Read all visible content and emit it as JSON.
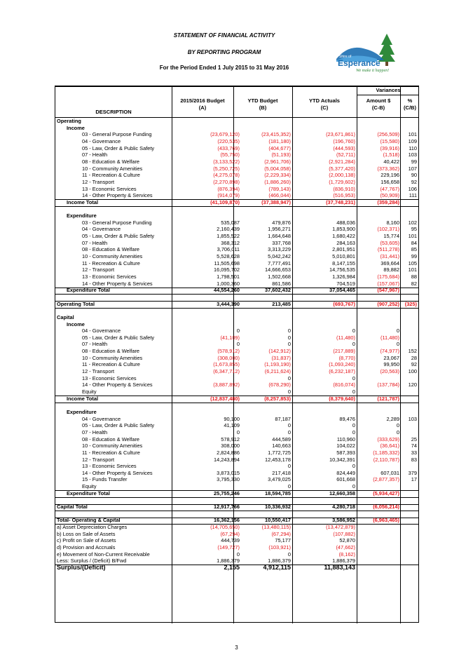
{
  "header": {
    "title": "STATEMENT OF FINANCIAL ACTIVITY",
    "subtitle": "BY REPORTING PROGRAM",
    "period": "For the Period Ended 1 July 2015 to 31 May 2016"
  },
  "logo": {
    "line1": "Shire of",
    "line2": "Esperance",
    "tagline": "We make it happen!"
  },
  "columns": {
    "variances": "Variances",
    "description": "DESCRIPTION",
    "budget": "2015/2016 Budget",
    "budget_sub": "(A)",
    "ytd_budget": "YTD Budget",
    "ytd_budget_sub": "(B)",
    "ytd_actuals": "YTD Actuals",
    "ytd_actuals_sub": "(C)",
    "amount": "Amount $",
    "amount_sub": "(C-B)",
    "pct": "%",
    "pct_sub": "(C/B)"
  },
  "rows": [
    {
      "label": "Operating",
      "b": "",
      "y": "",
      "a": "",
      "v": "",
      "p": "",
      "bold": true,
      "indent": 0
    },
    {
      "label": "Income",
      "b": "",
      "y": "",
      "a": "",
      "v": "",
      "p": "",
      "bold": true,
      "indent": 1
    },
    {
      "label": "03 - General Purpose Funding",
      "b": "(23,679,120)",
      "y": "(23,415,352)",
      "a": "(23,671,861)",
      "v": "(256,509)",
      "p": "101",
      "indent": 2
    },
    {
      "label": "04 - Governance",
      "b": "(220,535)",
      "y": "(181,180)",
      "a": "(196,760)",
      "v": "(15,580)",
      "p": "109",
      "indent": 2
    },
    {
      "label": "05 - Law, Order & Public Safety",
      "b": "(433,769)",
      "y": "(404,677)",
      "a": "(444,593)",
      "v": "(39,916)",
      "p": "110",
      "indent": 2
    },
    {
      "label": "07 - Health",
      "b": "(55,750)",
      "y": "(51,193)",
      "a": "(52,711)",
      "v": "(1,518)",
      "p": "103",
      "indent": 2
    },
    {
      "label": "08 - Education & Welfare",
      "b": "(3,133,522)",
      "y": "(2,961,706)",
      "a": "(2,921,284)",
      "v": "40,422",
      "p": "99",
      "indent": 2
    },
    {
      "label": "10 - Community Amenities",
      "b": "(5,250,725)",
      "y": "(5,004,058)",
      "a": "(5,377,420)",
      "v": "(373,362)",
      "p": "107",
      "indent": 2
    },
    {
      "label": "11 - Recreation & Culture",
      "b": "(4,275,078)",
      "y": "(2,229,334)",
      "a": "(2,000,138)",
      "v": "229,196",
      "p": "90",
      "indent": 2
    },
    {
      "label": "12 - Transport",
      "b": "(2,270,898)",
      "y": "(1,886,260)",
      "a": "(1,729,602)",
      "v": "156,658",
      "p": "92",
      "indent": 2
    },
    {
      "label": "13 - Economic Services",
      "b": "(876,394)",
      "y": "(789,143)",
      "a": "(836,910)",
      "v": "(47,767)",
      "p": "106",
      "indent": 2
    },
    {
      "label": "14 - Other Property & Services",
      "b": "(914,079)",
      "y": "(466,044)",
      "a": "(516,953)",
      "v": "(50,909)",
      "p": "111",
      "indent": 2
    },
    {
      "label": "Income Total",
      "b": "(41,109,870)",
      "y": "(37,388,947)",
      "a": "(37,748,231)",
      "v": "(359,284)",
      "p": "",
      "bold": true,
      "indent": 1,
      "lineBefore": true,
      "lineAfter": true
    },
    {
      "label": "",
      "b": "",
      "y": "",
      "a": "",
      "v": "",
      "p": "",
      "indent": 0
    },
    {
      "label": "Expenditure",
      "b": "",
      "y": "",
      "a": "",
      "v": "",
      "p": "",
      "bold": true,
      "indent": 1
    },
    {
      "label": "03 - General Purpose Funding",
      "b": "535,087",
      "y": "479,876",
      "a": "488,036",
      "v": "8,160",
      "p": "102",
      "indent": 2
    },
    {
      "label": "04 - Governance",
      "b": "2,160,439",
      "y": "1,956,271",
      "a": "1,853,900",
      "v": "(102,371)",
      "p": "95",
      "indent": 2
    },
    {
      "label": "05 - Law, Order & Public Safety",
      "b": "1,855,522",
      "y": "1,664,648",
      "a": "1,680,422",
      "v": "15,774",
      "p": "101",
      "indent": 2
    },
    {
      "label": "07 - Health",
      "b": "368,312",
      "y": "337,768",
      "a": "284,163",
      "v": "(53,605)",
      "p": "84",
      "indent": 2
    },
    {
      "label": "08 - Education & Welfare",
      "b": "3,706,011",
      "y": "3,313,229",
      "a": "2,801,951",
      "v": "(511,278)",
      "p": "85",
      "indent": 2
    },
    {
      "label": "10 - Community Amenities",
      "b": "5,528,628",
      "y": "5,042,242",
      "a": "5,010,801",
      "v": "(31,441)",
      "p": "99",
      "indent": 2
    },
    {
      "label": "11 - Recreation & Culture",
      "b": "11,505,698",
      "y": "7,777,491",
      "a": "8,147,155",
      "v": "369,664",
      "p": "105",
      "indent": 2
    },
    {
      "label": "12 - Transport",
      "b": "16,095,702",
      "y": "14,666,653",
      "a": "14,756,535",
      "v": "89,882",
      "p": "101",
      "indent": 2
    },
    {
      "label": "13 - Economic Services",
      "b": "1,798,501",
      "y": "1,502,668",
      "a": "1,326,984",
      "v": "(175,684)",
      "p": "88",
      "indent": 2
    },
    {
      "label": "14 - Other Property & Services",
      "b": "1,000,360",
      "y": "861,586",
      "a": "704,519",
      "v": "(157,067)",
      "p": "82",
      "indent": 2
    },
    {
      "label": "Expenditure Total",
      "b": "44,554,260",
      "y": "37,602,432",
      "a": "37,054,465",
      "v": "(547,967)",
      "p": "",
      "bold": true,
      "indent": 1,
      "lineBefore": true,
      "lineAfter": true
    },
    {
      "label": "",
      "b": "",
      "y": "",
      "a": "",
      "v": "",
      "p": "",
      "indent": 0
    },
    {
      "label": "Operating Total",
      "b": "3,444,390",
      "y": "213,485",
      "a": "(693,767)",
      "v": "(907,252)",
      "p": "(325)",
      "bold": true,
      "indent": 0,
      "lineBefore": true,
      "lineAfter": true
    },
    {
      "label": "",
      "b": "",
      "y": "",
      "a": "",
      "v": "",
      "p": "",
      "indent": 0
    },
    {
      "label": "Capital",
      "b": "",
      "y": "",
      "a": "",
      "v": "",
      "p": "",
      "bold": true,
      "indent": 0
    },
    {
      "label": "Income",
      "b": "",
      "y": "",
      "a": "",
      "v": "",
      "p": "",
      "bold": true,
      "indent": 1
    },
    {
      "label": "04 - Governance",
      "b": "0",
      "y": "0",
      "a": "0",
      "v": "0",
      "p": "",
      "indent": 2
    },
    {
      "label": "05 - Law, Order & Public Safety",
      "b": "(41,109)",
      "y": "0",
      "a": "(11,480)",
      "v": "(11,480)",
      "p": "",
      "indent": 2
    },
    {
      "label": "07 - Health",
      "b": "0",
      "y": "0",
      "a": "0",
      "v": "0",
      "p": "",
      "indent": 2
    },
    {
      "label": "08 - Education & Welfare",
      "b": "(578,912)",
      "y": "(142,912)",
      "a": "(217,889)",
      "v": "(74,977)",
      "p": "152",
      "indent": 2
    },
    {
      "label": "10 - Community Amenities",
      "b": "(308,000)",
      "y": "(31,837)",
      "a": "(8,770)",
      "v": "23,067",
      "p": "28",
      "indent": 2
    },
    {
      "label": "11 - Recreation & Culture",
      "b": "(1,673,855)",
      "y": "(1,193,190)",
      "a": "(1,093,240)",
      "v": "99,950",
      "p": "92",
      "indent": 2
    },
    {
      "label": "12 - Transport",
      "b": "(6,347,712)",
      "y": "(6,211,624)",
      "a": "(6,232,187)",
      "v": "(20,563)",
      "p": "100",
      "indent": 2
    },
    {
      "label": "13 - Economic Services",
      "b": "",
      "y": "0",
      "a": "0",
      "v": "",
      "p": "",
      "indent": 2
    },
    {
      "label": "14 - Other Property & Services",
      "b": "(3,887,892)",
      "y": "(678,290)",
      "a": "(816,074)",
      "v": "(137,784)",
      "p": "120",
      "indent": 2
    },
    {
      "label": "Equity",
      "b": "",
      "y": "0",
      "a": "0",
      "v": "",
      "p": "",
      "indent": 2
    },
    {
      "label": "Income Total",
      "b": "(12,837,480)",
      "y": "(8,257,853)",
      "a": "(8,379,640)",
      "v": "(121,787)",
      "p": "",
      "bold": true,
      "indent": 1,
      "lineBefore": true,
      "lineAfter": true
    },
    {
      "label": "",
      "b": "",
      "y": "",
      "a": "",
      "v": "",
      "p": "",
      "indent": 0
    },
    {
      "label": "Expenditure",
      "b": "",
      "y": "",
      "a": "",
      "v": "",
      "p": "",
      "bold": true,
      "indent": 1
    },
    {
      "label": "04 - Governance",
      "b": "90,100",
      "y": "87,187",
      "a": "89,476",
      "v": "2,289",
      "p": "103",
      "indent": 2
    },
    {
      "label": "05 - Law, Order & Public Safety",
      "b": "41,109",
      "y": "0",
      "a": "0",
      "v": "0",
      "p": "",
      "indent": 2
    },
    {
      "label": "07 - Health",
      "b": "0",
      "y": "0",
      "a": "0",
      "v": "0",
      "p": "",
      "indent": 2
    },
    {
      "label": "08 - Education & Welfare",
      "b": "578,912",
      "y": "444,589",
      "a": "110,960",
      "v": "(333,629)",
      "p": "25",
      "indent": 2
    },
    {
      "label": "10 - Community Amenities",
      "b": "308,000",
      "y": "140,663",
      "a": "104,022",
      "v": "(36,641)",
      "p": "74",
      "indent": 2
    },
    {
      "label": "11 - Recreation & Culture",
      "b": "2,824,886",
      "y": "1,772,725",
      "a": "587,393",
      "v": "(1,185,332)",
      "p": "33",
      "indent": 2
    },
    {
      "label": "12 - Transport",
      "b": "14,243,894",
      "y": "12,453,178",
      "a": "10,342,391",
      "v": "(2,110,787)",
      "p": "83",
      "indent": 2
    },
    {
      "label": "13 - Economic Services",
      "b": "",
      "y": "0",
      "a": "0",
      "v": "",
      "p": "",
      "indent": 2
    },
    {
      "label": "14 - Other Property & Services",
      "b": "3,873,015",
      "y": "217,418",
      "a": "824,449",
      "v": "607,031",
      "p": "379",
      "indent": 2
    },
    {
      "label": "15 - Funds Transfer",
      "b": "3,795,330",
      "y": "3,479,025",
      "a": "601,668",
      "v": "(2,877,357)",
      "p": "17",
      "indent": 2
    },
    {
      "label": "Equity",
      "b": "",
      "y": "0",
      "a": "0",
      "v": "",
      "p": "",
      "indent": 2
    },
    {
      "label": "Expenditure Total",
      "b": "25,755,246",
      "y": "18,594,785",
      "a": "12,660,358",
      "v": "(5,934,427)",
      "p": "",
      "bold": true,
      "indent": 1,
      "lineBefore": true,
      "lineAfter": true
    },
    {
      "label": "",
      "b": "",
      "y": "",
      "a": "",
      "v": "",
      "p": "",
      "indent": 0
    },
    {
      "label": "Capital Total",
      "b": "12,917,766",
      "y": "10,336,932",
      "a": "4,280,718",
      "v": "(6,056,214)",
      "p": "",
      "bold": true,
      "indent": 0,
      "lineBefore": true,
      "lineAfter": true
    },
    {
      "label": "",
      "b": "",
      "y": "",
      "a": "",
      "v": "",
      "p": "",
      "indent": 0
    },
    {
      "label": "Total- Operating & Capital",
      "b": "16,362,156",
      "y": "10,550,417",
      "a": "3,586,952",
      "v": "(6,963,465)",
      "p": "",
      "bold": true,
      "indent": 0,
      "lineBefore": true,
      "lineAfter": true
    },
    {
      "label": "a) Asset Depreciation Charges",
      "b": "(14,705,650)",
      "y": "(13,480,115)",
      "a": "(13,472,879)",
      "v": "",
      "p": "",
      "indent": 0
    },
    {
      "label": "b) Loss on Sale of Assets",
      "b": "(67,294)",
      "y": "(67,294)",
      "a": "(107,882)",
      "v": "",
      "p": "",
      "indent": 0
    },
    {
      "label": "c) Profit on Sale of Assets",
      "b": "444,739",
      "y": "75,177",
      "a": "52,870",
      "v": "",
      "p": "",
      "indent": 0
    },
    {
      "label": "d) Provision and Accruals",
      "b": "(149,727)",
      "y": "(103,921)",
      "a": "(47,662)",
      "v": "",
      "p": "",
      "indent": 0
    },
    {
      "label": "e) Movement of Non-Current Receivable",
      "b": "0",
      "y": "0",
      "a": "(8,162)",
      "v": "",
      "p": "",
      "indent": 0
    },
    {
      "label": "Less: Surplus / (Deficit) B/Fwd",
      "b": "1,886,379",
      "y": "1,886,379",
      "a": "1,886,379",
      "v": "",
      "p": "",
      "indent": 0
    },
    {
      "label": "Surplus/(Deficit)",
      "b": "2,155",
      "y": "4,912,115",
      "a": "11,883,143",
      "v": "",
      "p": "",
      "bold": true,
      "indent": 0,
      "big": true,
      "lineBefore": true
    }
  ],
  "footer": {
    "page": "3"
  },
  "colors": {
    "negative": "#e5141a",
    "logo_blue": "#1c6fb3",
    "logo_green": "#2f8a3a"
  }
}
